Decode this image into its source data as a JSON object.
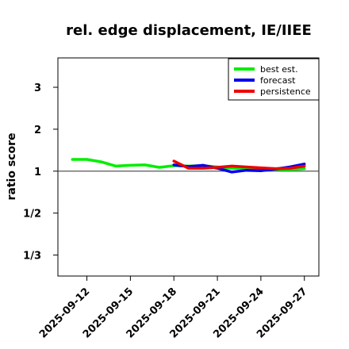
{
  "chart_data": {
    "type": "line",
    "title": "rel. edge displacement, IE/IIEE",
    "xlabel": "",
    "ylabel": "ratio score",
    "y_scale": "reciprocal-symmetric (ratio) scale",
    "yticks": [
      {
        "value": 3,
        "label": "3"
      },
      {
        "value": 2,
        "label": "2"
      },
      {
        "value": 1,
        "label": "1"
      },
      {
        "value": 0.5,
        "label": "1/2"
      },
      {
        "value": 0.3333,
        "label": "1/3"
      }
    ],
    "ylim": [
      0.2857,
      3.7
    ],
    "xlim": [
      "2025-09-10",
      "2025-09-28"
    ],
    "xticks": [
      {
        "value": "2025-09-12",
        "label": "2025-09-12",
        "color": "#000000"
      },
      {
        "value": "2025-09-15",
        "label": "2025-09-15",
        "color": "#000000"
      },
      {
        "value": "2025-09-18",
        "label": "2025-09-18",
        "color": "#228B22"
      },
      {
        "value": "2025-09-21",
        "label": "2025-09-21",
        "color": "#000000"
      },
      {
        "value": "2025-09-24",
        "label": "2025-09-24",
        "color": "#000000"
      },
      {
        "value": "2025-09-27",
        "label": "2025-09-27",
        "color": "#000000"
      }
    ],
    "reference_line": 1,
    "legend_position": "top-right",
    "series": [
      {
        "name": "best est.",
        "color": "#00ee00",
        "x": [
          "2025-09-11",
          "2025-09-12",
          "2025-09-13",
          "2025-09-14",
          "2025-09-15",
          "2025-09-16",
          "2025-09-17",
          "2025-09-18",
          "2025-09-19",
          "2025-09-20",
          "2025-09-21",
          "2025-09-22",
          "2025-09-23",
          "2025-09-24",
          "2025-09-25",
          "2025-09-26",
          "2025-09-27"
        ],
        "y": [
          1.28,
          1.28,
          1.22,
          1.12,
          1.14,
          1.15,
          1.09,
          1.13,
          1.12,
          1.13,
          1.1,
          1.07,
          1.07,
          1.05,
          1.04,
          1.04,
          1.06
        ]
      },
      {
        "name": "forecast",
        "color": "#0000ee",
        "x": [
          "2025-09-18",
          "2025-09-19",
          "2025-09-20",
          "2025-09-21",
          "2025-09-22",
          "2025-09-23",
          "2025-09-24",
          "2025-09-25",
          "2025-09-26",
          "2025-09-27"
        ],
        "y": [
          1.15,
          1.11,
          1.14,
          1.07,
          0.98,
          1.02,
          1.01,
          1.05,
          1.1,
          1.17
        ]
      },
      {
        "name": "persistence",
        "color": "#ee0000",
        "x": [
          "2025-09-18",
          "2025-09-19",
          "2025-09-20",
          "2025-09-21",
          "2025-09-22",
          "2025-09-23",
          "2025-09-24",
          "2025-09-25",
          "2025-09-26",
          "2025-09-27"
        ],
        "y": [
          1.24,
          1.07,
          1.07,
          1.09,
          1.12,
          1.1,
          1.08,
          1.06,
          1.07,
          1.12
        ]
      }
    ]
  }
}
